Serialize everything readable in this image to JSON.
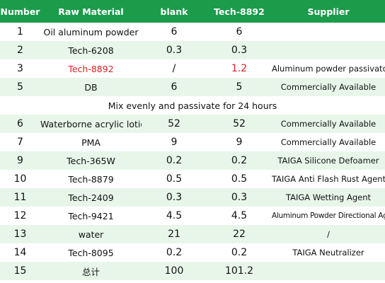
{
  "table": {
    "headers": {
      "number": "Number",
      "material": "Raw Material",
      "blank": "blank",
      "tech": "Tech-8892",
      "supplier": "Supplier"
    },
    "rows": [
      {
        "number": "1",
        "material": "Oil aluminum powder",
        "blank": "6",
        "tech": "6",
        "supplier": ""
      },
      {
        "number": "2",
        "material": "Tech-6208",
        "blank": "0.3",
        "tech": "0.3",
        "supplier": ""
      },
      {
        "number": "3",
        "material": "Tech-8892",
        "blank": "/",
        "tech": "1.2",
        "supplier": "Aluminum powder passivator"
      },
      {
        "number": "5",
        "material": "DB",
        "blank": "6",
        "tech": "5",
        "supplier": "Commercially Available"
      },
      {
        "note": "Mix evenly and passivate for 24 hours"
      },
      {
        "number": "6",
        "material": "Waterborne acrylic lotion",
        "blank": "52",
        "tech": "52",
        "supplier": "Commercially Available"
      },
      {
        "number": "7",
        "material": "PMA",
        "blank": "9",
        "tech": "9",
        "supplier": "Commercially Available"
      },
      {
        "number": "9",
        "material": "Tech-365W",
        "blank": "0.2",
        "tech": "0.2",
        "supplier": "TAIGA Silicone Defoamer"
      },
      {
        "number": "10",
        "material": "Tech-8879",
        "blank": "0.5",
        "tech": "0.5",
        "supplier": "TAIGA Anti Flash Rust Agent"
      },
      {
        "number": "11",
        "material": "Tech-2409",
        "blank": "0.3",
        "tech": "0.3",
        "supplier": "TAIGA Wetting Agent"
      },
      {
        "number": "12",
        "material": "Tech-9421",
        "blank": "4.5",
        "tech": "4.5",
        "supplier": "Aluminum Powder Directional Agent"
      },
      {
        "number": "13",
        "material": "water",
        "blank": "21",
        "tech": "22",
        "supplier": "/"
      },
      {
        "number": "14",
        "material": "Tech-8095",
        "blank": "0.2",
        "tech": "0.2",
        "supplier": "TAIGA Neutralizer"
      },
      {
        "number": "15",
        "material": "总计",
        "blank": "100",
        "tech": "101.2",
        "supplier": ""
      }
    ]
  },
  "colors": {
    "header_bg": "#1c9b4b",
    "stripe": "#e8f6ea",
    "highlight": "#e02020"
  }
}
